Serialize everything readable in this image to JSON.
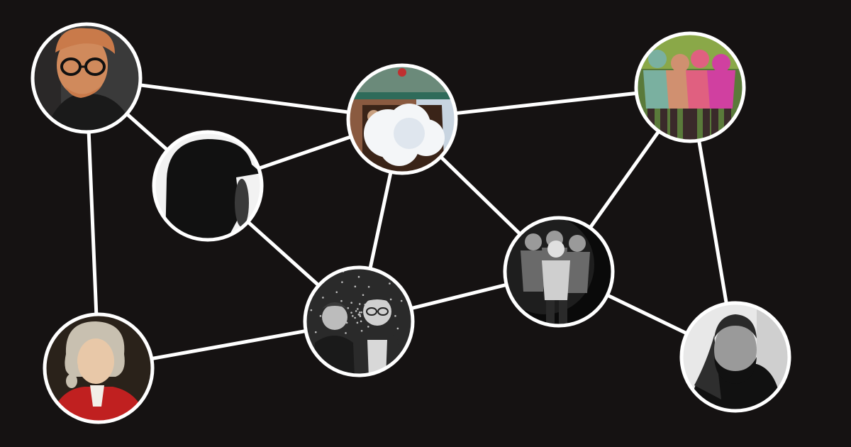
{
  "colors": {
    "background": "#151212",
    "edge": "#ffffff",
    "ring": "#ffffff"
  },
  "nodes": [
    {
      "id": "redhead-glasses-portrait",
      "palette": [
        "#3a3a3a",
        "#1a1a1a",
        "#c97a4a",
        "#d08a5c",
        "#e0a070"
      ],
      "kind": "portrait-color"
    },
    {
      "id": "hooded-silhouette",
      "palette": [
        "#f2f2f2",
        "#111111"
      ],
      "kind": "silhouette"
    },
    {
      "id": "bearded-man-cap-cloud",
      "palette": [
        "#6b8a7a",
        "#2f6b5a",
        "#8a5a40",
        "#c8d4e0",
        "#f4f6f8"
      ],
      "kind": "cloud-face"
    },
    {
      "id": "band-painted-pink",
      "palette": [
        "#5a7a3a",
        "#8aa848",
        "#d040a0",
        "#e06080",
        "#d09070"
      ],
      "kind": "group-color"
    },
    {
      "id": "band-bw-four",
      "palette": [
        "#0a0a0a",
        "#3a3a3a",
        "#cfcfcf"
      ],
      "kind": "group-bw"
    },
    {
      "id": "duo-bw-portrait",
      "palette": [
        "#2a2a2a",
        "#5a5a5a",
        "#d8d8d8"
      ],
      "kind": "duo-bw"
    },
    {
      "id": "classical-wig-portrait",
      "palette": [
        "#2a221a",
        "#c8c0b0",
        "#e8c8a8",
        "#c02020"
      ],
      "kind": "classical"
    },
    {
      "id": "bearded-man-bw",
      "palette": [
        "#e8e8e8",
        "#9a9a9a",
        "#2a2a2a",
        "#111111"
      ],
      "kind": "bw-man"
    }
  ],
  "edges": [
    [
      "redhead-glasses-portrait",
      "bearded-man-cap-cloud"
    ],
    [
      "redhead-glasses-portrait",
      "hooded-silhouette"
    ],
    [
      "redhead-glasses-portrait",
      "classical-wig-portrait"
    ],
    [
      "hooded-silhouette",
      "bearded-man-cap-cloud"
    ],
    [
      "hooded-silhouette",
      "duo-bw-portrait"
    ],
    [
      "bearded-man-cap-cloud",
      "band-painted-pink"
    ],
    [
      "bearded-man-cap-cloud",
      "duo-bw-portrait"
    ],
    [
      "bearded-man-cap-cloud",
      "band-bw-four"
    ],
    [
      "band-painted-pink",
      "band-bw-four"
    ],
    [
      "band-painted-pink",
      "bearded-man-bw"
    ],
    [
      "band-bw-four",
      "duo-bw-portrait"
    ],
    [
      "band-bw-four",
      "bearded-man-bw"
    ],
    [
      "duo-bw-portrait",
      "classical-wig-portrait"
    ]
  ]
}
